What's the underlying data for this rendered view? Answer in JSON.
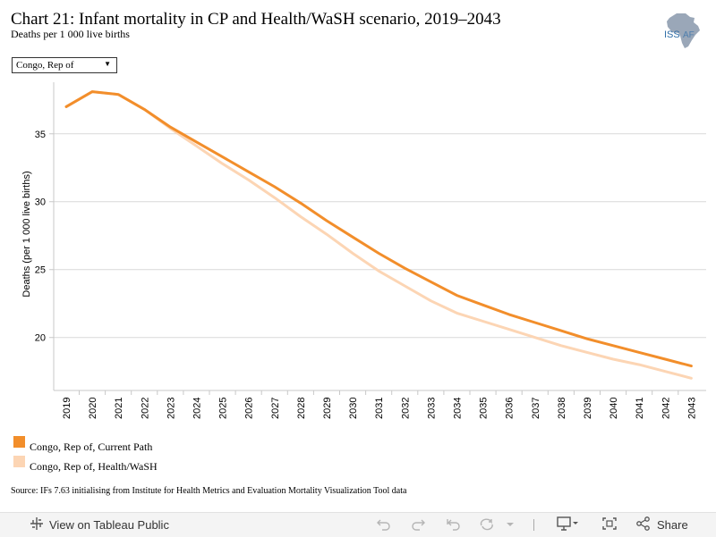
{
  "header": {
    "title": "Chart 21: Infant mortality in CP and Health/WaSH scenario, 2019–2043",
    "subtitle": "Deaths per 1 000 live births"
  },
  "logo": {
    "text": "ISS",
    "suffix": "AF",
    "icon": "africa-map-icon"
  },
  "filter": {
    "selected": "Congo, Rep of"
  },
  "chart_data": {
    "type": "line",
    "title": "Chart 21: Infant mortality in CP and Health/WaSH scenario, 2019–2043",
    "subtitle": "Deaths per 1 000 live births",
    "xlabel": "",
    "ylabel": "Deaths (per 1 000 live births)",
    "ylim": [
      16.1,
      38.8
    ],
    "yticks": [
      20,
      25,
      30,
      35
    ],
    "grid": true,
    "legend_position": "bottom-left",
    "x": [
      "2019",
      "2020",
      "2021",
      "2022",
      "2023",
      "2024",
      "2025",
      "2026",
      "2027",
      "2028",
      "2029",
      "2030",
      "2031",
      "2032",
      "2033",
      "2034",
      "2035",
      "2036",
      "2037",
      "2038",
      "2039",
      "2040",
      "2041",
      "2042",
      "2043"
    ],
    "series": [
      {
        "name": "Congo, Rep of, Current Path",
        "color": "#f28e2b",
        "values": [
          37.0,
          38.1,
          37.9,
          36.8,
          35.5,
          34.4,
          33.3,
          32.2,
          31.1,
          29.9,
          28.6,
          27.4,
          26.2,
          25.1,
          24.1,
          23.1,
          22.4,
          21.7,
          21.1,
          20.5,
          19.9,
          19.4,
          18.9,
          18.4,
          17.9
        ]
      },
      {
        "name": "Congo, Rep of, Health/WaSH",
        "color": "#fcd5b4",
        "values": [
          37.0,
          38.1,
          37.9,
          36.8,
          35.4,
          34.1,
          32.8,
          31.6,
          30.3,
          28.9,
          27.6,
          26.2,
          24.9,
          23.8,
          22.7,
          21.8,
          21.2,
          20.6,
          20.0,
          19.4,
          18.9,
          18.4,
          18.0,
          17.5,
          17.0
        ]
      }
    ]
  },
  "source": "Source: IFs 7.63 initialising from Institute for Health Metrics and Evaluation Mortality Visualization Tool data",
  "toolbar": {
    "view_label": "View on Tableau Public",
    "share_label": "Share",
    "icons": [
      "tableau-icon",
      "undo-icon",
      "redo-icon",
      "revert-icon",
      "refresh-icon",
      "pause-icon",
      "download-icon",
      "fullscreen-icon",
      "share-icon"
    ]
  }
}
